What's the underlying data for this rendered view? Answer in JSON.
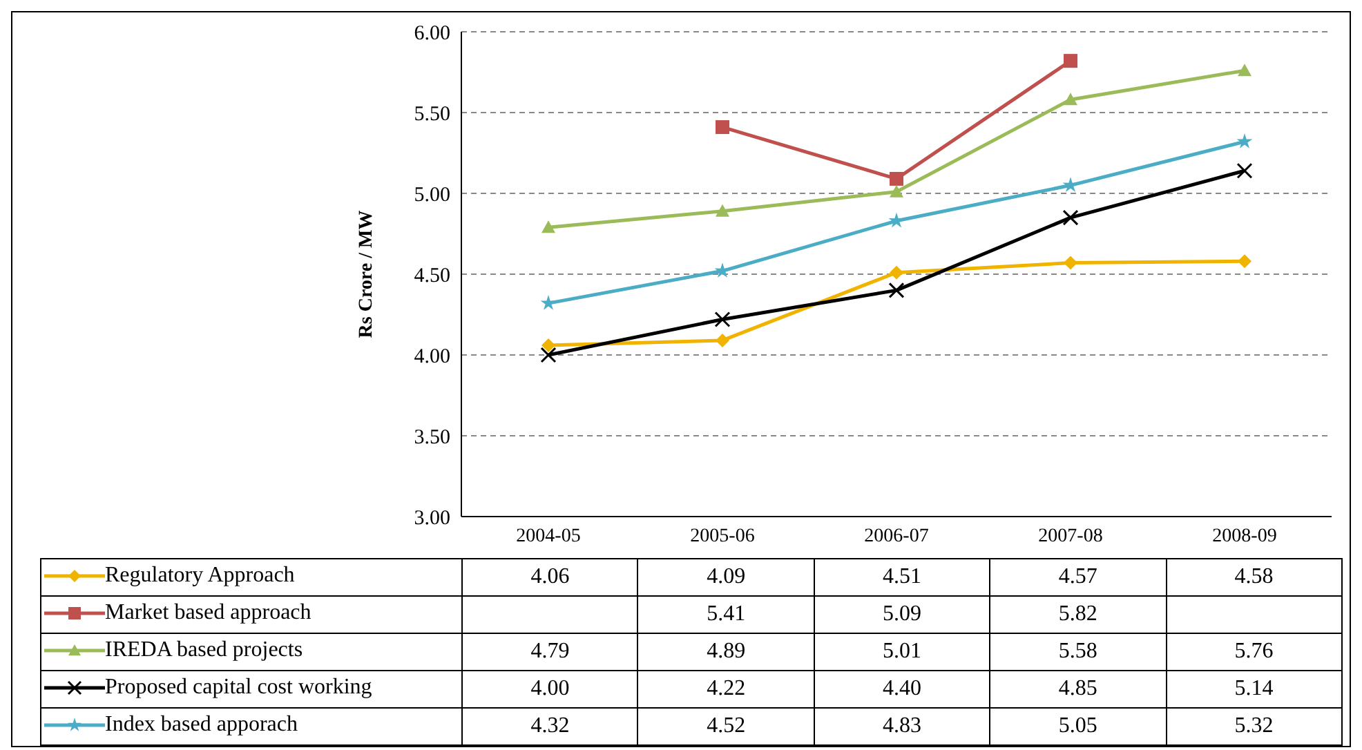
{
  "chart_data": {
    "type": "line",
    "ylabel": "Rs Crore / MW",
    "categories": [
      "2004-05",
      "2005-06",
      "2006-07",
      "2007-08",
      "2008-09"
    ],
    "ylim": [
      3,
      6
    ],
    "yticks": [
      {
        "value": 3,
        "label": "3.00"
      },
      {
        "value": 3.5,
        "label": "3.50"
      },
      {
        "value": 4,
        "label": "4.00"
      },
      {
        "value": 4.5,
        "label": "4.50"
      },
      {
        "value": 5,
        "label": "5.00"
      },
      {
        "value": 5.5,
        "label": "5.50"
      },
      {
        "value": 6,
        "label": "6.00"
      }
    ],
    "grid": "y",
    "legend": "bottom left",
    "line_style": "solid",
    "series": [
      {
        "name": "Regulatory Approach",
        "color": "#f0b400",
        "marker": "diamond",
        "values": [
          4.06,
          4.09,
          4.51,
          4.57,
          4.58
        ],
        "value_labels": [
          "4.06",
          "4.09",
          "4.51",
          "4.57",
          "4.58"
        ]
      },
      {
        "name": "Market based approach",
        "color": "#c0504d",
        "marker": "square",
        "values": [
          null,
          5.41,
          5.09,
          5.82,
          null
        ],
        "value_labels": [
          null,
          "5.41",
          "5.09",
          "5.82",
          null
        ]
      },
      {
        "name": "IREDA based projects",
        "color": "#9bbb59",
        "marker": "triangle",
        "values": [
          4.79,
          4.89,
          5.01,
          5.58,
          5.76
        ],
        "value_labels": [
          "4.79",
          "4.89",
          "5.01",
          "5.58",
          "5.76"
        ]
      },
      {
        "name": "Proposed capital cost working",
        "color": "#000000",
        "marker": "cross",
        "values": [
          4.0,
          4.22,
          4.4,
          4.85,
          5.14
        ],
        "value_labels": [
          "4.00",
          "4.22",
          "4.40",
          "4.85",
          "5.14"
        ]
      },
      {
        "name": "Index based apporach",
        "color": "#4bacc6",
        "marker": "star",
        "values": [
          4.32,
          4.52,
          4.83,
          5.05,
          5.32
        ],
        "value_labels": [
          "4.32",
          "4.52",
          "4.83",
          "5.05",
          "5.32"
        ]
      }
    ]
  }
}
